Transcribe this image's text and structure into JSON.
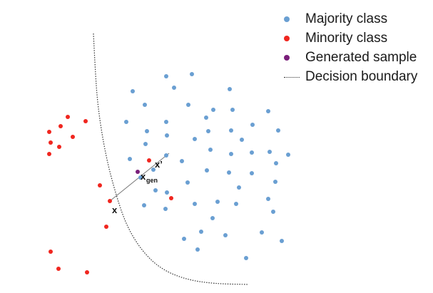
{
  "legend": {
    "majority": {
      "label": "Majority class",
      "color": "#6a9fd2"
    },
    "minority": {
      "label": "Minority class",
      "color": "#f0261f"
    },
    "generated": {
      "label": "Generated sample",
      "color": "#7a1f7a"
    },
    "boundary": {
      "label": "Decision boundary",
      "color": "#333333"
    }
  },
  "annotations": {
    "x": "x",
    "x_prime": "x’",
    "x_gen_base": "x",
    "x_gen_sub": "gen"
  },
  "chart_data": {
    "type": "scatter",
    "series": [
      {
        "name": "Majority class",
        "points": [
          [
            233,
            107
          ],
          [
            269,
            104
          ],
          [
            186,
            128
          ],
          [
            244,
            123
          ],
          [
            322,
            125
          ],
          [
            203,
            147
          ],
          [
            264,
            147
          ],
          [
            299,
            154
          ],
          [
            326,
            154
          ],
          [
            376,
            156
          ],
          [
            177,
            171
          ],
          [
            233,
            171
          ],
          [
            289,
            165
          ],
          [
            354,
            175
          ],
          [
            206,
            184
          ],
          [
            292,
            184
          ],
          [
            324,
            183
          ],
          [
            390,
            183
          ],
          [
            234,
            190
          ],
          [
            273,
            195
          ],
          [
            339,
            196
          ],
          [
            204,
            202
          ],
          [
            295,
            210
          ],
          [
            324,
            216
          ],
          [
            353,
            214
          ],
          [
            378,
            213
          ],
          [
            404,
            217
          ],
          [
            182,
            223
          ],
          [
            233,
            218
          ],
          [
            255,
            226
          ],
          [
            215,
            238
          ],
          [
            290,
            239
          ],
          [
            321,
            242
          ],
          [
            353,
            243
          ],
          [
            387,
            229
          ],
          [
            197,
            249
          ],
          [
            263,
            256
          ],
          [
            386,
            255
          ],
          [
            218,
            267
          ],
          [
            234,
            270
          ],
          [
            335,
            263
          ],
          [
            376,
            279
          ],
          [
            298,
            306
          ],
          [
            202,
            288
          ],
          [
            232,
            293
          ],
          [
            273,
            286
          ],
          [
            305,
            283
          ],
          [
            331,
            286
          ],
          [
            383,
            297
          ],
          [
            282,
            325
          ],
          [
            316,
            330
          ],
          [
            367,
            326
          ],
          [
            258,
            335
          ],
          [
            395,
            338
          ],
          [
            277,
            350
          ],
          [
            345,
            362
          ]
        ]
      },
      {
        "name": "Minority class",
        "points": [
          [
            95,
            164
          ],
          [
            120,
            170
          ],
          [
            69,
            185
          ],
          [
            85,
            177
          ],
          [
            102,
            192
          ],
          [
            71,
            200
          ],
          [
            83,
            206
          ],
          [
            69,
            216
          ],
          [
            140,
            260
          ],
          [
            240,
            278
          ],
          [
            149,
            318
          ],
          [
            71,
            353
          ],
          [
            82,
            377
          ],
          [
            122,
            382
          ],
          [
            209,
            225
          ],
          [
            154,
            282
          ]
        ]
      },
      {
        "name": "Generated sample",
        "points": [
          [
            193,
            241
          ]
        ]
      }
    ],
    "decision_boundary": [
      [
        131,
        47
      ],
      [
        133,
        90
      ],
      [
        137,
        150
      ],
      [
        148,
        218
      ],
      [
        163,
        275
      ],
      [
        178,
        318
      ],
      [
        199,
        352
      ],
      [
        225,
        377
      ],
      [
        260,
        392
      ],
      [
        300,
        398
      ],
      [
        348,
        399
      ]
    ],
    "interpolation_segment": {
      "from": [
        154,
        282
      ],
      "to": [
        237,
        215
      ]
    }
  }
}
